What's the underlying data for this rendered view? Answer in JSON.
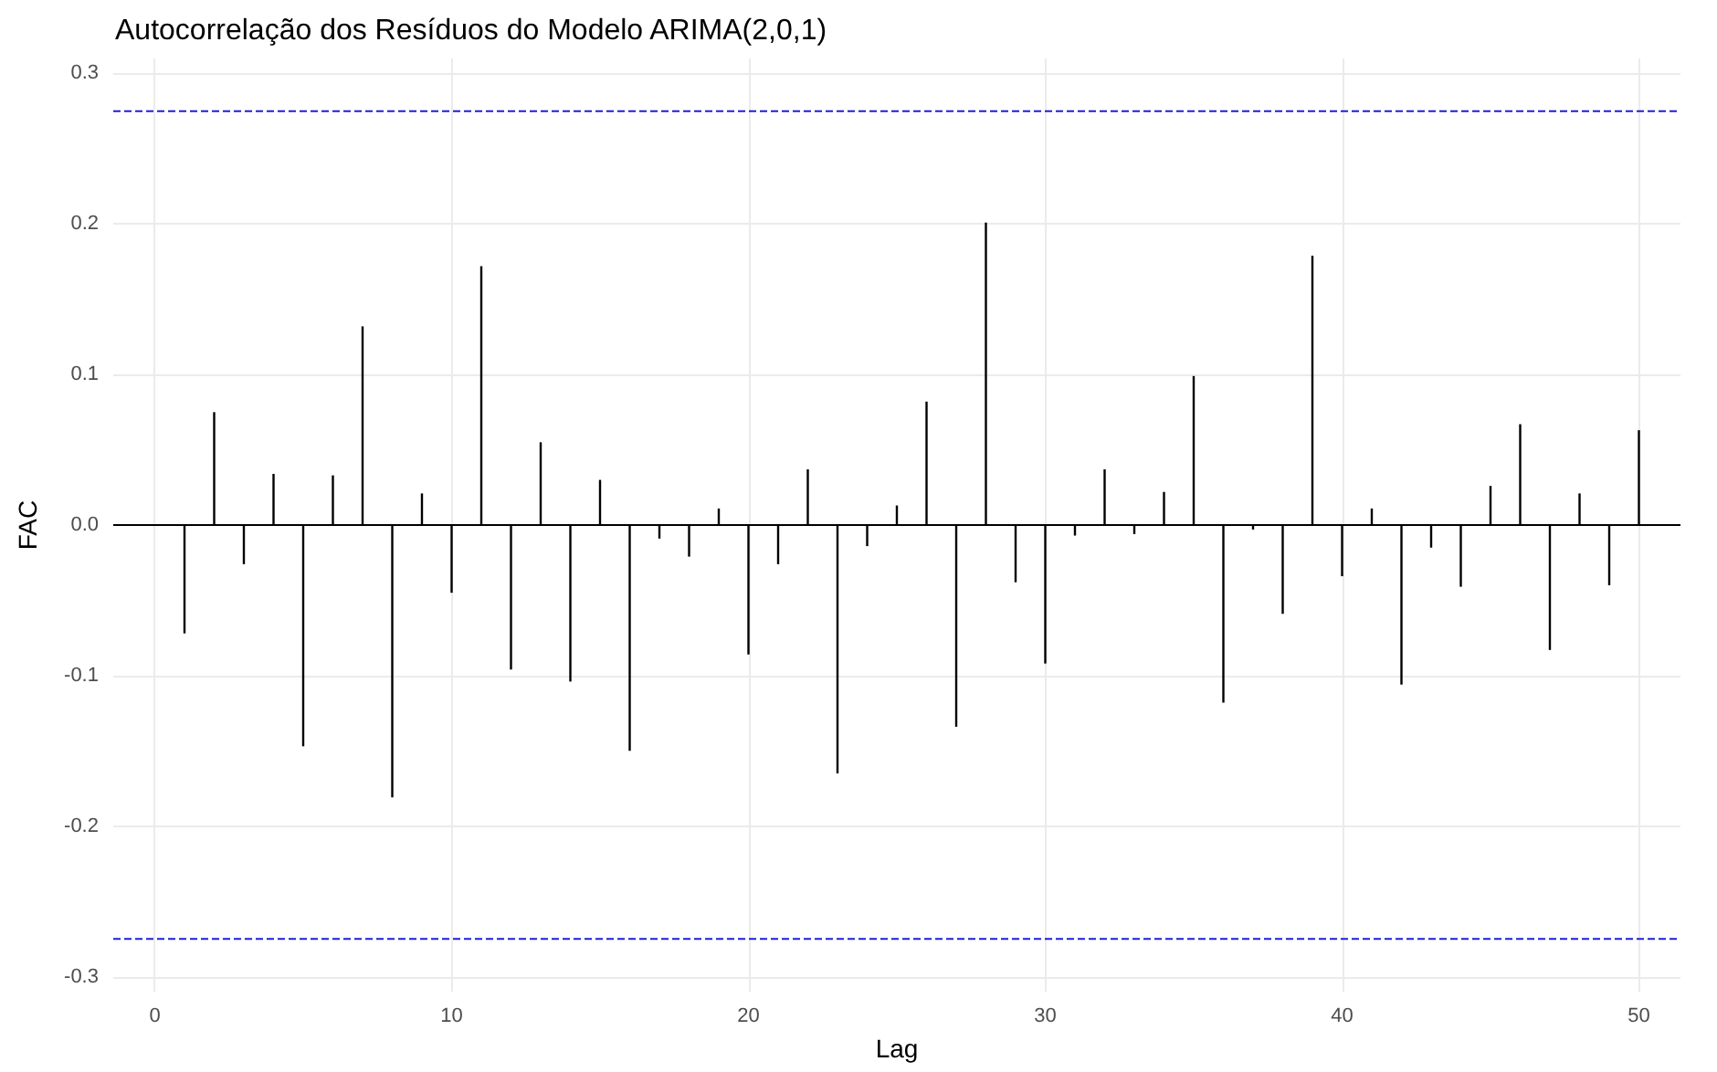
{
  "chart_data": {
    "type": "bar",
    "title": "Autocorrelação dos Resíduos do Modelo ARIMA(2,0,1)",
    "xlabel": "Lag",
    "ylabel": "FAC",
    "color": "#000000",
    "x": [
      1,
      2,
      3,
      4,
      5,
      6,
      7,
      8,
      9,
      10,
      11,
      12,
      13,
      14,
      15,
      16,
      17,
      18,
      19,
      20,
      21,
      22,
      23,
      24,
      25,
      26,
      27,
      28,
      29,
      30,
      31,
      32,
      33,
      34,
      35,
      36,
      37,
      38,
      39,
      40,
      41,
      42,
      43,
      44,
      45,
      46,
      47,
      48,
      49,
      50
    ],
    "values": [
      -0.072,
      0.075,
      -0.026,
      0.034,
      -0.147,
      0.033,
      0.132,
      -0.181,
      0.021,
      -0.045,
      0.172,
      -0.096,
      0.055,
      -0.104,
      0.03,
      -0.15,
      -0.009,
      -0.021,
      0.011,
      -0.086,
      -0.026,
      0.037,
      -0.165,
      -0.014,
      0.013,
      0.082,
      -0.134,
      0.201,
      -0.038,
      -0.092,
      -0.007,
      0.037,
      -0.006,
      0.022,
      0.099,
      -0.118,
      -0.003,
      -0.059,
      0.179,
      -0.034,
      0.011,
      -0.106,
      -0.015,
      -0.041,
      0.026,
      0.067,
      -0.083,
      0.021,
      -0.04,
      0.063
    ],
    "xlim": [
      -1.4,
      51.4
    ],
    "xticks": [
      0,
      10,
      20,
      30,
      40,
      50
    ],
    "ylim": [
      -0.31,
      0.31
    ],
    "yticks": [
      -0.3,
      -0.2,
      -0.1,
      {
        "value": 0,
        "label": "0.0"
      },
      0.1,
      0.2,
      0.3
    ],
    "grid": true,
    "ref_lines": [
      {
        "axis": "y",
        "value": 0.275,
        "color": "#1f1fd6",
        "line_style": "dashed"
      },
      {
        "axis": "y",
        "value": -0.275,
        "color": "#1f1fd6",
        "line_style": "dashed"
      },
      {
        "axis": "y",
        "value": 0,
        "color": "#000000",
        "line_style": "solid"
      }
    ]
  }
}
